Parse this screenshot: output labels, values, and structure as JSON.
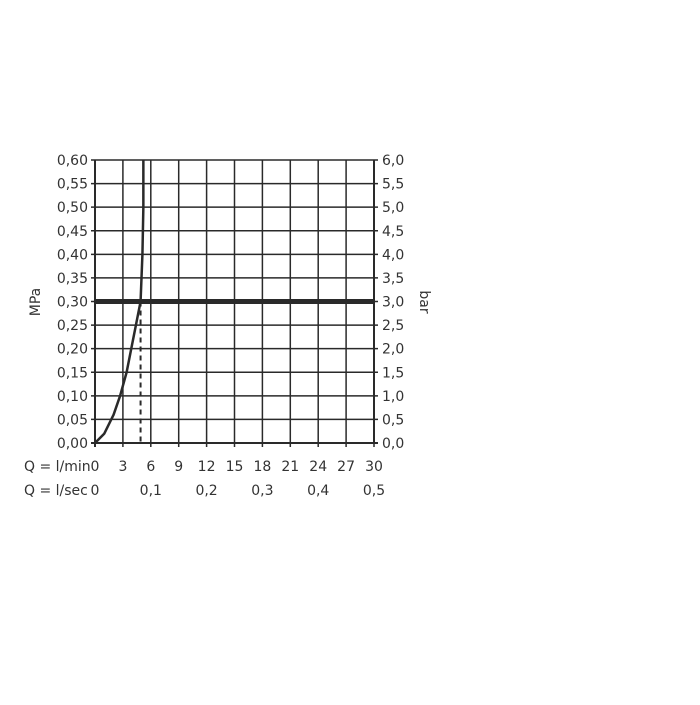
{
  "chart_data": {
    "type": "line",
    "x_label_row1": "Q = l/min",
    "x_label_row2": "Q = l/sec",
    "ylabel_left": "MPa",
    "ylabel_right": "bar",
    "x_ticks_lmin": [
      "0",
      "3",
      "6",
      "9",
      "12",
      "15",
      "18",
      "21",
      "24",
      "27",
      "30"
    ],
    "x_ticks_lsec": [
      {
        "at": 0,
        "label": "0"
      },
      {
        "at": 6,
        "label": "0,1"
      },
      {
        "at": 12,
        "label": "0,2"
      },
      {
        "at": 18,
        "label": "0,3"
      },
      {
        "at": 24,
        "label": "0,4"
      },
      {
        "at": 30,
        "label": "0,5"
      }
    ],
    "y_ticks_left": [
      "0,00",
      "0,05",
      "0,10",
      "0,15",
      "0,20",
      "0,25",
      "0,30",
      "0,35",
      "0,40",
      "0,45",
      "0,50",
      "0,55",
      "0,60"
    ],
    "y_ticks_right": [
      "0,0",
      "0,5",
      "1,0",
      "1,5",
      "2,0",
      "2,5",
      "3,0",
      "3,5",
      "4,0",
      "4,5",
      "5,0",
      "5,5",
      "6,0"
    ],
    "xlim": [
      0,
      30
    ],
    "ylim": [
      0,
      0.6
    ],
    "grid": true,
    "series": [
      {
        "x": [
          0,
          1,
          2,
          2.7,
          3.4,
          3.9,
          4.4,
          4.9,
          5.1,
          5.2,
          5.2
        ],
        "y": [
          0,
          0.02,
          0.06,
          0.1,
          0.15,
          0.2,
          0.25,
          0.3,
          0.4,
          0.5,
          0.6
        ]
      }
    ],
    "reference_line_pressure": 0.3,
    "reference_flow_dashed": 4.9,
    "color": "#2a2a2a"
  }
}
